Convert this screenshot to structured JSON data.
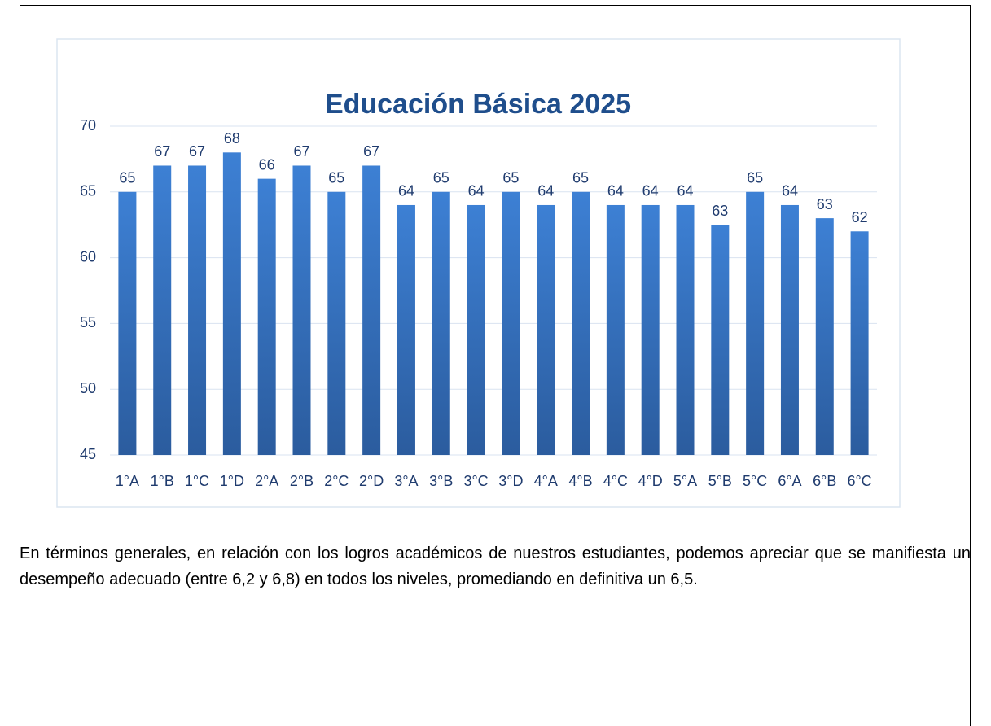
{
  "chart_data": {
    "type": "bar",
    "title": "Educación Básica 2025",
    "categories": [
      "1°A",
      "1°B",
      "1°C",
      "1°D",
      "2°A",
      "2°B",
      "2°C",
      "2°D",
      "3°A",
      "3°B",
      "3°C",
      "3°D",
      "4°A",
      "4°B",
      "4°C",
      "4°D",
      "5°A",
      "5°B",
      "5°C",
      "6°A",
      "6°B",
      "6°C"
    ],
    "values": [
      65,
      67,
      67,
      68,
      66,
      67,
      65,
      67,
      64,
      65,
      64,
      65,
      64,
      65,
      64,
      64,
      64,
      62.5,
      65,
      64,
      63,
      62
    ],
    "value_labels": [
      "65",
      "67",
      "67",
      "68",
      "66",
      "67",
      "65",
      "67",
      "64",
      "65",
      "64",
      "65",
      "64",
      "65",
      "64",
      "64",
      "64",
      "63",
      "65",
      "64",
      "63",
      "62"
    ],
    "color": "#3a78c9",
    "ylim": [
      45,
      70
    ],
    "yticks": [
      45,
      50,
      55,
      60,
      65,
      70
    ],
    "grid": true
  },
  "paragraph": "En términos generales, en relación con los logros académicos de nuestros estudiantes, podemos apreciar que se manifiesta un desempeño adecuado (entre 6,2 y 6,8) en todos los niveles, promediando en definitiva un 6,5."
}
